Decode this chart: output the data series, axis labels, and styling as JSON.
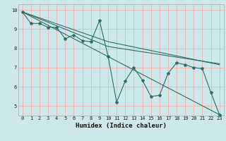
{
  "xlabel": "Humidex (Indice chaleur)",
  "background_color": "#cce8e8",
  "grid_color": "#f0b0b0",
  "line_color": "#2d6e68",
  "xlim": [
    -0.5,
    23.5
  ],
  "ylim": [
    4.5,
    10.3
  ],
  "xticks": [
    0,
    1,
    2,
    3,
    4,
    5,
    6,
    7,
    8,
    9,
    10,
    11,
    12,
    13,
    14,
    15,
    16,
    17,
    18,
    19,
    20,
    21,
    22,
    23
  ],
  "yticks": [
    5,
    6,
    7,
    8,
    9,
    10
  ],
  "series1_x": [
    0,
    1,
    2,
    3,
    4,
    5,
    6,
    7,
    8,
    9,
    10,
    11,
    12,
    13,
    14,
    15,
    16,
    17,
    18,
    19,
    20,
    21,
    22,
    23
  ],
  "series1_y": [
    9.9,
    9.3,
    9.3,
    9.1,
    9.1,
    8.5,
    8.7,
    8.4,
    8.35,
    9.45,
    7.6,
    5.2,
    6.3,
    7.0,
    6.35,
    5.5,
    5.55,
    6.7,
    7.25,
    7.15,
    7.0,
    6.95,
    5.7,
    4.55
  ],
  "series2_x": [
    0,
    23
  ],
  "series2_y": [
    9.9,
    4.55
  ],
  "series3_x": [
    0,
    10,
    23
  ],
  "series3_y": [
    9.9,
    8.35,
    7.15
  ],
  "series4_x": [
    0,
    10,
    23
  ],
  "series4_y": [
    9.9,
    8.1,
    7.2
  ],
  "figwidth": 3.2,
  "figheight": 2.0,
  "dpi": 100
}
